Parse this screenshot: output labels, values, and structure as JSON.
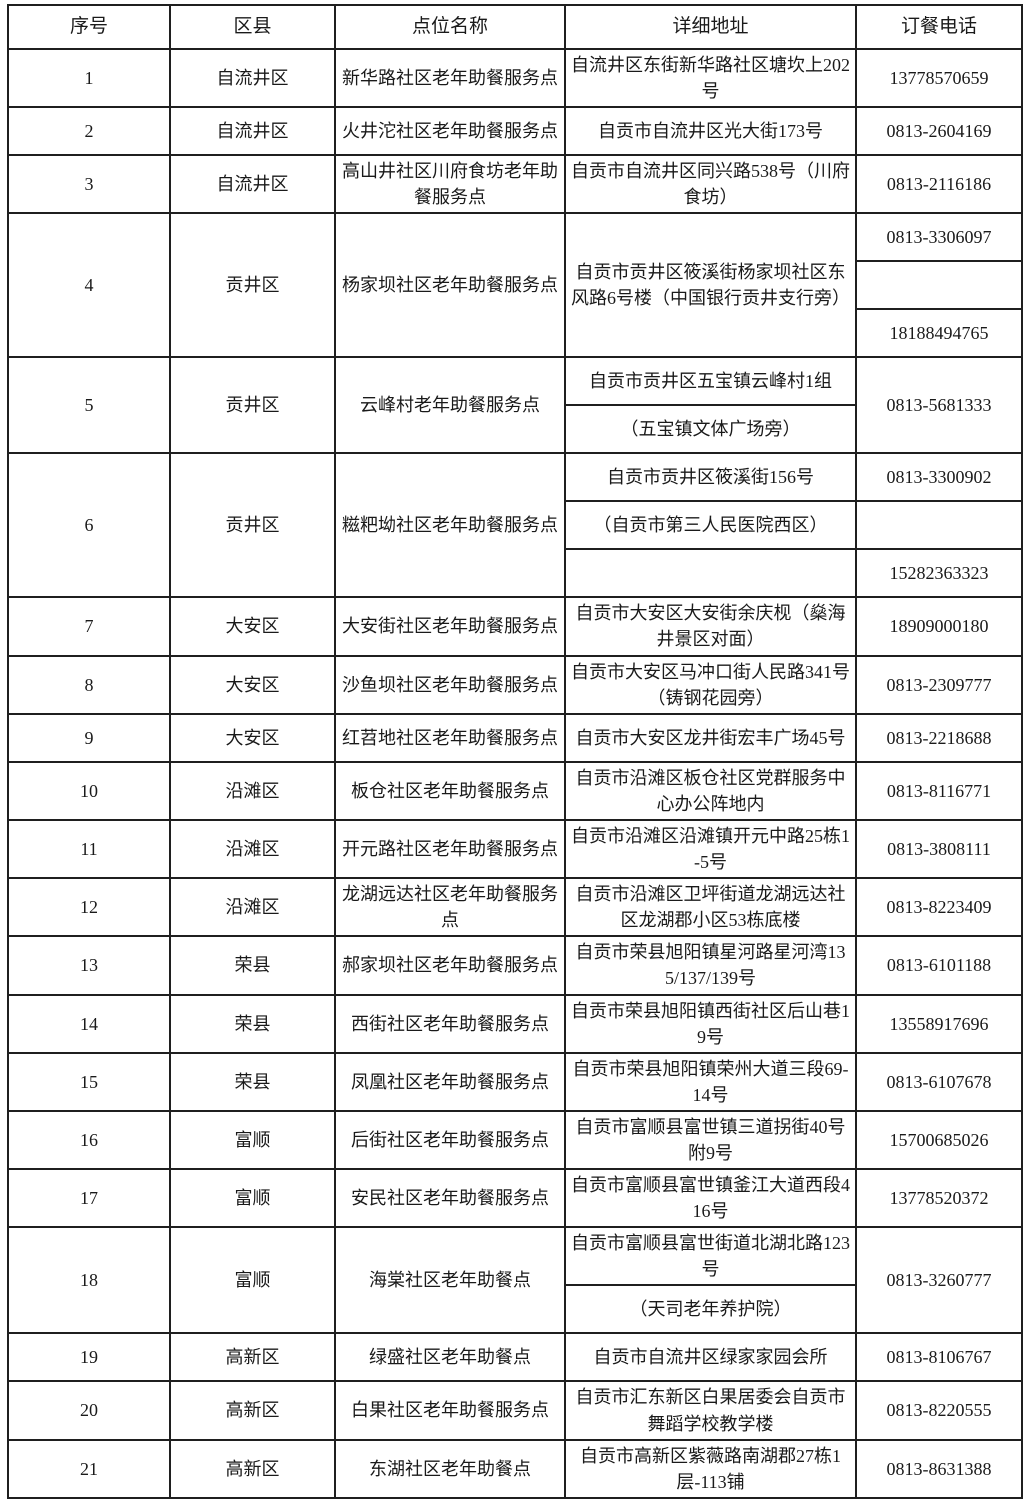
{
  "table": {
    "header": [
      "序号",
      "区县",
      "点位名称",
      "详细地址",
      "订餐电话"
    ],
    "rows": [
      {
        "cells": [
          {
            "text": "1"
          },
          {
            "text": "自流井区"
          },
          {
            "text": "新华路社区老年助餐服务点"
          },
          {
            "text": "自流井区东街新华路社区塘坎上202号"
          },
          {
            "text": "13778570659"
          }
        ]
      },
      {
        "cells": [
          {
            "text": "2"
          },
          {
            "text": "自流井区"
          },
          {
            "text": "火井沱社区老年助餐服务点"
          },
          {
            "text": "自贡市自流井区光大街173号"
          },
          {
            "text": "0813-2604169"
          }
        ]
      },
      {
        "cells": [
          {
            "text": "3"
          },
          {
            "text": "自流井区"
          },
          {
            "text": "高山井社区川府食坊老年助餐服务点"
          },
          {
            "text": "自贡市自流井区同兴路538号（川府食坊）"
          },
          {
            "text": "0813-2116186"
          }
        ]
      },
      {
        "cells": [
          {
            "text": "4",
            "rowspan": 3
          },
          {
            "text": "贡井区",
            "rowspan": 3
          },
          {
            "text": "杨家坝社区老年助餐服务点",
            "rowspan": 3
          },
          {
            "text": "自贡市贡井区筱溪街杨家坝社区东风路6号楼（中国银行贡井支行旁）",
            "rowspan": 3
          },
          {
            "text": "0813-3306097"
          }
        ]
      },
      {
        "cells": [
          {
            "text": ""
          }
        ]
      },
      {
        "cells": [
          {
            "text": "18188494765"
          }
        ]
      },
      {
        "cells": [
          {
            "text": "5",
            "rowspan": 2
          },
          {
            "text": "贡井区",
            "rowspan": 2
          },
          {
            "text": "云峰村老年助餐服务点",
            "rowspan": 2
          },
          {
            "text": "自贡市贡井区五宝镇云峰村1组"
          },
          {
            "text": "0813-5681333",
            "rowspan": 2
          }
        ]
      },
      {
        "cells": [
          {
            "text": "（五宝镇文体广场旁）"
          }
        ]
      },
      {
        "cells": [
          {
            "text": "6",
            "rowspan": 3
          },
          {
            "text": "贡井区",
            "rowspan": 3
          },
          {
            "text": "糍粑坳社区老年助餐服务点",
            "rowspan": 3
          },
          {
            "text": "自贡市贡井区筱溪街156号"
          },
          {
            "text": "0813-3300902"
          }
        ]
      },
      {
        "cells": [
          {
            "text": "（自贡市第三人民医院西区）"
          },
          {
            "text": ""
          }
        ]
      },
      {
        "cells": [
          {
            "text": ""
          },
          {
            "text": "15282363323"
          }
        ]
      },
      {
        "cells": [
          {
            "text": "7"
          },
          {
            "text": "大安区"
          },
          {
            "text": "大安街社区老年助餐服务点"
          },
          {
            "text": "自贡市大安区大安街余庆枧（燊海井景区对面）"
          },
          {
            "text": "18909000180"
          }
        ]
      },
      {
        "cells": [
          {
            "text": "8"
          },
          {
            "text": "大安区"
          },
          {
            "text": "沙鱼坝社区老年助餐服务点"
          },
          {
            "text": "自贡市大安区马冲口街人民路341号（铸钢花园旁）"
          },
          {
            "text": "0813-2309777"
          }
        ]
      },
      {
        "cells": [
          {
            "text": "9"
          },
          {
            "text": "大安区"
          },
          {
            "text": "红苕地社区老年助餐服务点"
          },
          {
            "text": "自贡市大安区龙井街宏丰广场45号"
          },
          {
            "text": "0813-2218688"
          }
        ]
      },
      {
        "cells": [
          {
            "text": "10"
          },
          {
            "text": "沿滩区"
          },
          {
            "text": "板仓社区老年助餐服务点"
          },
          {
            "text": "自贡市沿滩区板仓社区党群服务中心办公阵地内"
          },
          {
            "text": "0813-8116771"
          }
        ]
      },
      {
        "cells": [
          {
            "text": "11"
          },
          {
            "text": "沿滩区"
          },
          {
            "text": "开元路社区老年助餐服务点"
          },
          {
            "text": "自贡市沿滩区沿滩镇开元中路25栋1-5号"
          },
          {
            "text": "0813-3808111"
          }
        ]
      },
      {
        "cells": [
          {
            "text": "12"
          },
          {
            "text": "沿滩区"
          },
          {
            "text": "龙湖远达社区老年助餐服务点"
          },
          {
            "text": "自贡市沿滩区卫坪街道龙湖远达社区龙湖郡小区53栋底楼"
          },
          {
            "text": "0813-8223409"
          }
        ]
      },
      {
        "cells": [
          {
            "text": "13"
          },
          {
            "text": "荣县"
          },
          {
            "text": "郝家坝社区老年助餐服务点"
          },
          {
            "text": "自贡市荣县旭阳镇星河路星河湾135/137/139号"
          },
          {
            "text": "0813-6101188"
          }
        ]
      },
      {
        "cells": [
          {
            "text": "14"
          },
          {
            "text": "荣县"
          },
          {
            "text": "西街社区老年助餐服务点"
          },
          {
            "text": "自贡市荣县旭阳镇西街社区后山巷19号"
          },
          {
            "text": "13558917696"
          }
        ]
      },
      {
        "cells": [
          {
            "text": "15"
          },
          {
            "text": "荣县"
          },
          {
            "text": "凤凰社区老年助餐服务点"
          },
          {
            "text": "自贡市荣县旭阳镇荣州大道三段69-14号"
          },
          {
            "text": "0813-6107678"
          }
        ]
      },
      {
        "cells": [
          {
            "text": "16"
          },
          {
            "text": "富顺"
          },
          {
            "text": "后街社区老年助餐服务点"
          },
          {
            "text": "自贡市富顺县富世镇三道拐街40号附9号"
          },
          {
            "text": "15700685026"
          }
        ]
      },
      {
        "cells": [
          {
            "text": "17"
          },
          {
            "text": "富顺"
          },
          {
            "text": "安民社区老年助餐服务点"
          },
          {
            "text": "自贡市富顺县富世镇釜江大道西段416号"
          },
          {
            "text": "13778520372"
          }
        ]
      },
      {
        "cells": [
          {
            "text": "18",
            "rowspan": 2
          },
          {
            "text": "富顺",
            "rowspan": 2
          },
          {
            "text": "海棠社区老年助餐点",
            "rowspan": 2
          },
          {
            "text": "自贡市富顺县富世街道北湖北路123号"
          },
          {
            "text": "0813-3260777",
            "rowspan": 2
          }
        ]
      },
      {
        "cells": [
          {
            "text": "（天司老年养护院）"
          }
        ]
      },
      {
        "cells": [
          {
            "text": "19"
          },
          {
            "text": "高新区"
          },
          {
            "text": "绿盛社区老年助餐点"
          },
          {
            "text": "自贡市自流井区绿家家园会所"
          },
          {
            "text": "0813-8106767"
          }
        ]
      },
      {
        "cells": [
          {
            "text": "20"
          },
          {
            "text": "高新区"
          },
          {
            "text": "白果社区老年助餐服务点"
          },
          {
            "text": "自贡市汇东新区白果居委会自贡市舞蹈学校教学楼"
          },
          {
            "text": "0813-8220555"
          }
        ]
      },
      {
        "cells": [
          {
            "text": "21"
          },
          {
            "text": "高新区"
          },
          {
            "text": "东湖社区老年助餐点"
          },
          {
            "text": "自贡市高新区紫薇路南湖郡27栋1层-113铺"
          },
          {
            "text": "0813-8631388"
          }
        ]
      }
    ]
  }
}
